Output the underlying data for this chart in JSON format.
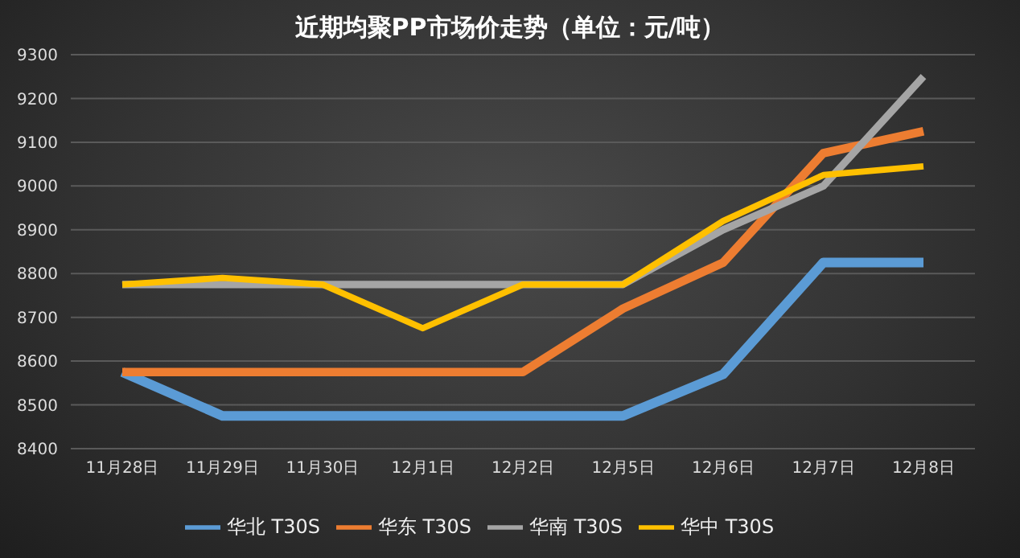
{
  "chart_data": {
    "type": "line",
    "title": "近期均聚PP市场价走势（单位：元/吨）",
    "categories": [
      "11月28日",
      "11月29日",
      "11月30日",
      "12月1日",
      "12月2日",
      "12月5日",
      "12月6日",
      "12月7日",
      "12月8日"
    ],
    "series": [
      {
        "name": "华北 T30S",
        "color": "#5b9bd5",
        "values": [
          8575,
          8475,
          8475,
          8475,
          8475,
          8475,
          8570,
          8825,
          8825
        ]
      },
      {
        "name": "华东 T30S",
        "color": "#ed7d31",
        "values": [
          8575,
          8575,
          8575,
          8575,
          8575,
          8720,
          8825,
          9075,
          9125
        ]
      },
      {
        "name": "华南 T30S",
        "color": "#a5a5a5",
        "values": [
          8775,
          8775,
          8775,
          8775,
          8775,
          8775,
          8900,
          9000,
          9250
        ]
      },
      {
        "name": "华中 T30S",
        "color": "#ffc000",
        "values": [
          8775,
          8790,
          8775,
          8675,
          8775,
          8775,
          8920,
          9025,
          9045
        ]
      }
    ],
    "ylim": [
      8400,
      9300
    ],
    "yticks": [
      8400,
      8500,
      8600,
      8700,
      8800,
      8900,
      9000,
      9100,
      9200,
      9300
    ],
    "grid": "y",
    "legend": "bottom",
    "marker": "none",
    "line_style": "solid"
  }
}
